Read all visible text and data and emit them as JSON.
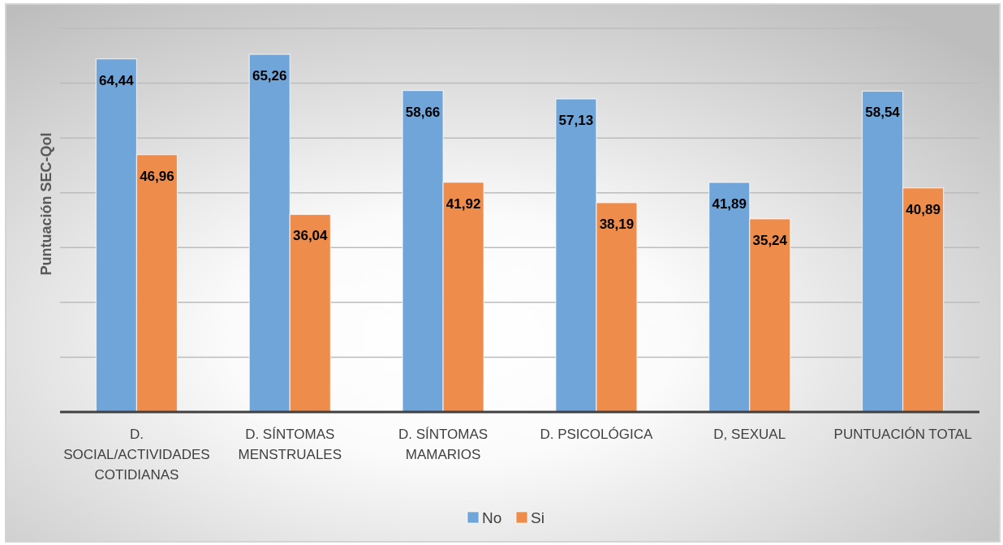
{
  "chart_data": {
    "type": "bar",
    "ylabel": "Puntuación SEC-Qol",
    "categories": [
      "D. SOCIAL/ACTIVIDADES COTIDIANAS",
      "D. SÍNTOMAS MENSTRUALES",
      "D. SÍNTOMAS MAMARIOS",
      "D. PSICOLÓGICA",
      "D, SEXUAL",
      "PUNTUACIÓN TOTAL"
    ],
    "series": [
      {
        "name": "No",
        "color": "#6fa5d8",
        "values": [
          64.44,
          65.26,
          58.66,
          57.13,
          41.89,
          58.54
        ],
        "value_labels": [
          "64,44",
          "65,26",
          "58,66",
          "57,13",
          "41,89",
          "58,54"
        ]
      },
      {
        "name": "Si",
        "color": "#ee8c4c",
        "values": [
          46.96,
          36.04,
          41.92,
          38.19,
          35.24,
          40.89
        ],
        "value_labels": [
          "46,96",
          "36,04",
          "41,92",
          "38,19",
          "35,24",
          "40,89"
        ]
      }
    ],
    "ylim": [
      0,
      70
    ],
    "yticks": [
      {
        "value": 0,
        "label": null
      },
      {
        "value": 10,
        "label": null
      },
      {
        "value": 20,
        "label": null
      },
      {
        "value": 30,
        "label": null
      },
      {
        "value": 40,
        "label": null
      },
      {
        "value": 50,
        "label": null
      },
      {
        "value": 60,
        "label": null
      },
      {
        "value": 70,
        "label": null
      }
    ],
    "grid": "y",
    "tick_labels": "x",
    "legend": "bottom"
  }
}
